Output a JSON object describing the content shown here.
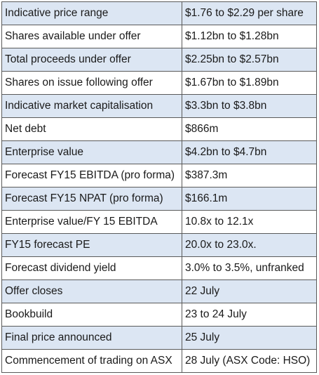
{
  "table": {
    "rows": [
      [
        "Indicative price range",
        "$1.76 to $2.29 per share"
      ],
      [
        "Shares available under offer",
        "$1.12bn to $1.28bn"
      ],
      [
        "Total proceeds under offer",
        "$2.25bn to $2.57bn"
      ],
      [
        "Shares on issue following offer",
        "$1.67bn to $1.89bn"
      ],
      [
        "Indicative market capitalisation",
        "$3.3bn to $3.8bn"
      ],
      [
        "Net debt",
        "$866m"
      ],
      [
        "Enterprise value",
        "$4.2bn to $4.7bn"
      ],
      [
        "Forecast FY15 EBITDA (pro forma)",
        "$387.3m"
      ],
      [
        "Forecast FY15 NPAT (pro forma)",
        "$166.1m"
      ],
      [
        "Enterprise value/FY 15 EBITDA",
        "10.8x to 12.1x"
      ],
      [
        "FY15 forecast PE",
        "20.0x to 23.0x."
      ],
      [
        "Forecast dividend yield",
        "3.0% to 3.5%, unfranked"
      ],
      [
        "Offer closes",
        "22 July"
      ],
      [
        "Bookbuild",
        "23 to 24 July"
      ],
      [
        "Final price announced",
        "25 July"
      ],
      [
        "Commencement of trading on ASX",
        "28 July (ASX Code: HSO)"
      ]
    ]
  }
}
